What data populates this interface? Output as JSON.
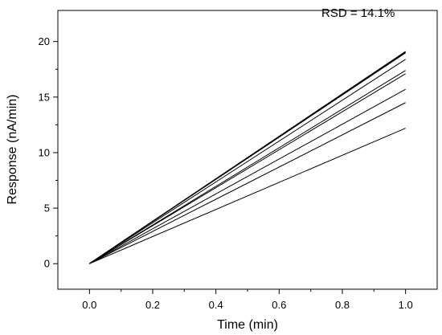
{
  "chart_data": {
    "type": "line",
    "title": "",
    "xlabel": "Time (min)",
    "ylabel": "Response (nA/min)",
    "xlim": [
      -0.1,
      1.1
    ],
    "ylim": [
      -2.3,
      22.8
    ],
    "xticks": [
      "0.0",
      "0.2",
      "0.4",
      "0.6",
      "0.8",
      "1.0"
    ],
    "yticks": [
      "0",
      "5",
      "10",
      "15",
      "20"
    ],
    "grid": false,
    "legend": "none",
    "annotation": "RSD = 14.1%",
    "line_color": "#000000",
    "x": [
      0.0,
      1.0
    ],
    "series": [
      {
        "values": [
          0,
          19.1
        ]
      },
      {
        "values": [
          0,
          19.0
        ]
      },
      {
        "values": [
          0,
          18.4
        ]
      },
      {
        "values": [
          0,
          17.4
        ]
      },
      {
        "values": [
          0,
          17.1
        ]
      },
      {
        "values": [
          0,
          15.7
        ]
      },
      {
        "values": [
          0,
          14.5
        ]
      },
      {
        "values": [
          0,
          12.2
        ]
      }
    ]
  }
}
